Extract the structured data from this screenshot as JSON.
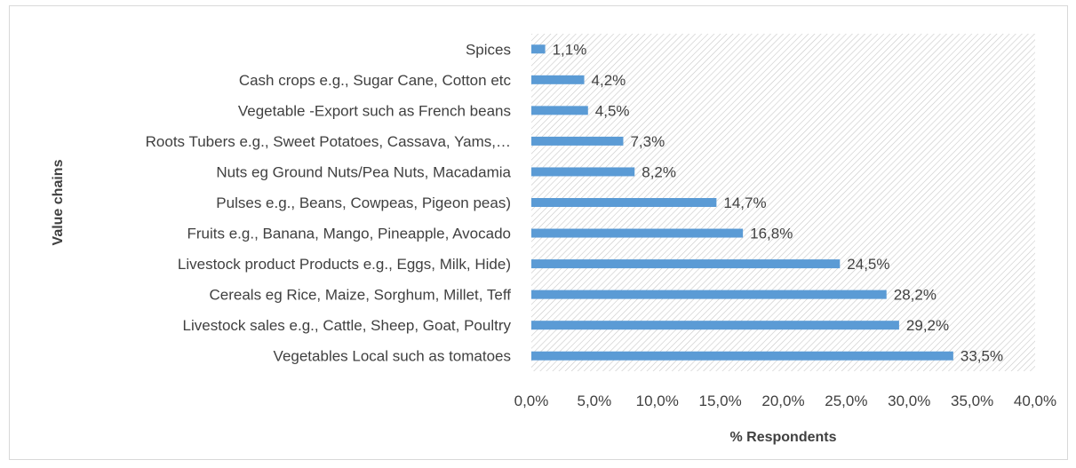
{
  "chart_data": {
    "type": "bar",
    "orientation": "horizontal",
    "title": "",
    "xlabel": "% Respondents",
    "ylabel": "Value chains",
    "xlim": [
      0,
      40
    ],
    "x_ticks": [
      "0,0%",
      "5,0%",
      "10,0%",
      "15,0%",
      "20,0%",
      "25,0%",
      "30,0%",
      "35,0%",
      "40,0%"
    ],
    "categories": [
      "Spices",
      "Cash crops e.g., Sugar Cane, Cotton etc",
      "Vegetable -Export such as French beans",
      "Roots Tubers e.g., Sweet Potatoes, Cassava, Yams,…",
      "Nuts eg Ground Nuts/Pea Nuts, Macadamia",
      "Pulses e.g., Beans, Cowpeas, Pigeon peas)",
      "Fruits e.g., Banana, Mango, Pineapple, Avocado",
      "Livestock product Products e.g., Eggs, Milk, Hide)",
      "Cereals eg Rice, Maize, Sorghum, Millet, Teff",
      "Livestock sales e.g., Cattle, Sheep, Goat, Poultry",
      "Vegetables Local such as tomatoes"
    ],
    "values": [
      1.1,
      4.2,
      4.5,
      7.3,
      8.2,
      14.7,
      16.8,
      24.5,
      28.2,
      29.2,
      33.5
    ],
    "data_labels": [
      "1,1%",
      "4,2%",
      "4,5%",
      "7,3%",
      "8,2%",
      "14,7%",
      "16,8%",
      "24,5%",
      "28,2%",
      "29,2%",
      "33,5%"
    ],
    "bar_color": "#5b9bd5",
    "plot_pattern": "diagonal-hatch",
    "grid": false,
    "legend": "none"
  }
}
